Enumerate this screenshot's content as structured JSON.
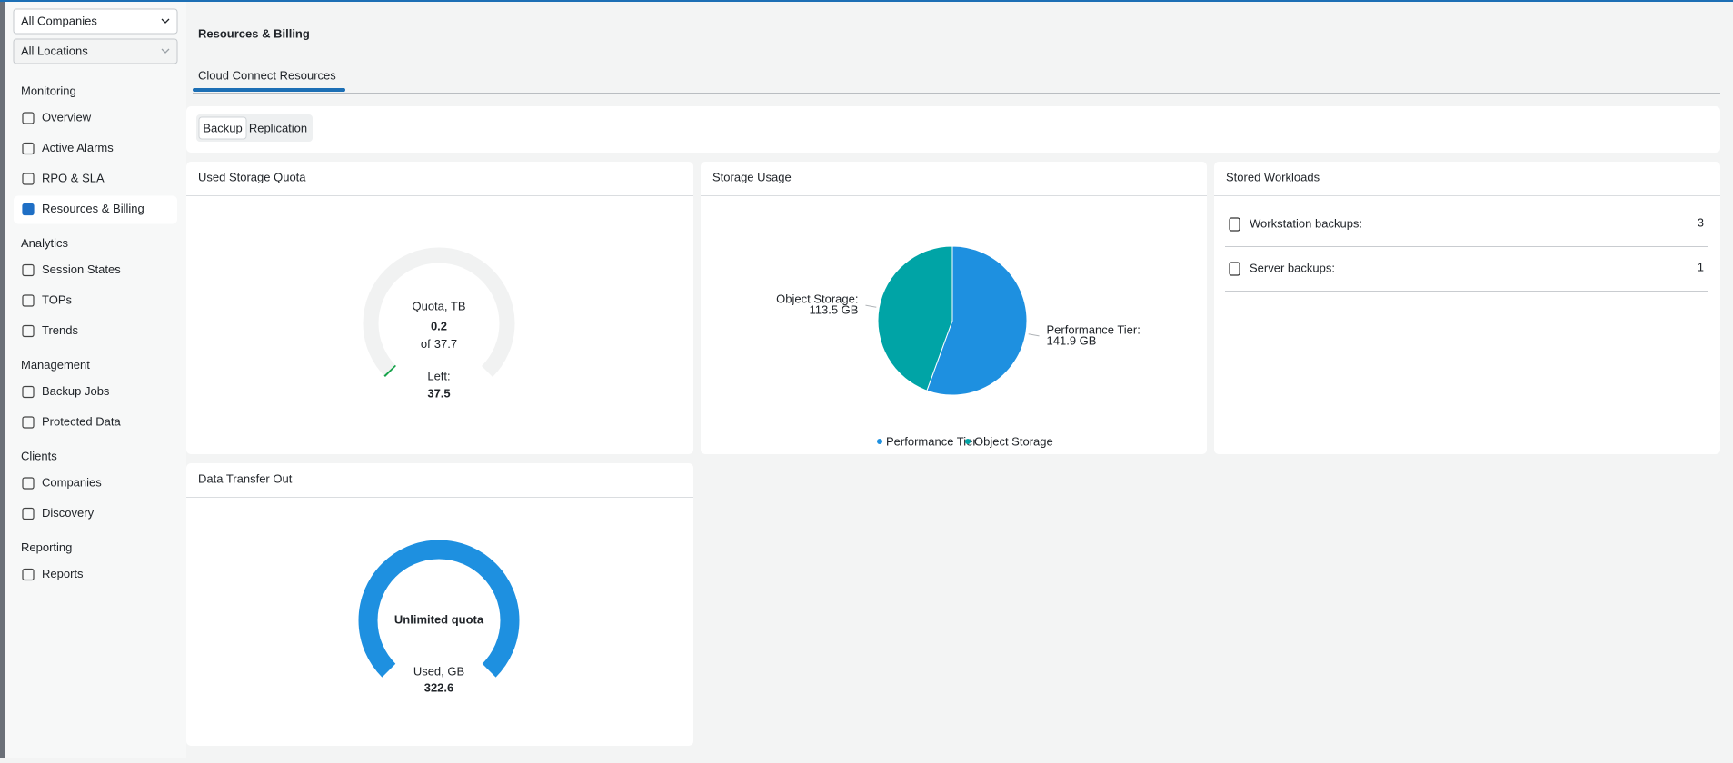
{
  "sidebar": {
    "company_select": "All Companies",
    "location_select": "All Locations",
    "sections": [
      {
        "title": "Monitoring",
        "items": [
          "Overview",
          "Active Alarms",
          "RPO & SLA",
          "Resources & Billing"
        ]
      },
      {
        "title": "Analytics",
        "items": [
          "Session States",
          "TOPs",
          "Trends"
        ]
      },
      {
        "title": "Management",
        "items": [
          "Backup Jobs",
          "Protected Data"
        ]
      },
      {
        "title": "Clients",
        "items": [
          "Companies",
          "Discovery"
        ]
      },
      {
        "title": "Reporting",
        "items": [
          "Reports"
        ]
      }
    ]
  },
  "page": {
    "title": "Resources & Billing",
    "tab": "Cloud Connect Resources",
    "toggle": [
      "Backup",
      "Replication"
    ]
  },
  "chart_data": [
    {
      "type": "gauge",
      "title": "Used Storage Quota",
      "label": "Quota, TB",
      "value": 0.2,
      "of_label": "of",
      "max": 37.7,
      "left_label": "Left:",
      "left": 37.5,
      "color": "#16a34a"
    },
    {
      "type": "pie",
      "title": "Storage Usage",
      "categories": [
        "Performance Tier",
        "Object Storage"
      ],
      "values": [
        141.9,
        113.5
      ],
      "value_labels": [
        "141.9 GB",
        "113.5 GB"
      ],
      "point_labels": [
        "Performance Tier:",
        "Object Storage:"
      ],
      "colors": [
        "#1e90e0",
        "#00a4a6"
      ],
      "legend": "bottom"
    },
    {
      "type": "gauge",
      "title": "Data Transfer Out",
      "label": "Unlimited quota",
      "value_title": "Used, GB",
      "value": 322.6,
      "color": "#1e90e0"
    }
  ],
  "workloads": {
    "title": "Stored Workloads",
    "rows": [
      {
        "label": "Workstation backups:",
        "value": 3
      },
      {
        "label": "Server backups:",
        "value": 1
      }
    ]
  }
}
